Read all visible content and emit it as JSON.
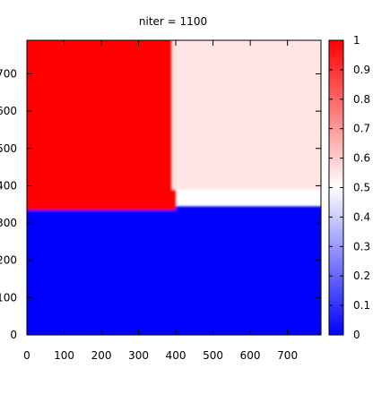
{
  "chart_data": {
    "type": "heatmap",
    "title": "niter = 1100",
    "xlabel": "",
    "ylabel": "",
    "xlim": [
      0,
      790
    ],
    "ylim": [
      0,
      790
    ],
    "x_ticks": [
      0,
      100,
      200,
      300,
      400,
      500,
      600,
      700
    ],
    "y_ticks": [
      0,
      100,
      200,
      300,
      400,
      500,
      600,
      700
    ],
    "x_tick_labels": [
      "0",
      "100",
      "200",
      "300",
      "400",
      "500",
      "600",
      "700"
    ],
    "y_tick_labels": [
      "0",
      "100",
      "200",
      "300",
      "400",
      "500",
      "600",
      "700"
    ],
    "colorbar": {
      "range": [
        0,
        1
      ],
      "ticks": [
        0,
        0.1,
        0.2,
        0.3,
        0.4,
        0.5,
        0.6,
        0.7,
        0.8,
        0.9,
        1
      ],
      "tick_labels": [
        "0",
        "0.1",
        "0.2",
        "0.3",
        "0.4",
        "0.5",
        "0.6",
        "0.7",
        "0.8",
        "0.9",
        "1"
      ],
      "colors": {
        "low": "#0000ff",
        "mid": "#ffffff",
        "high": "#ff0000"
      }
    },
    "regions": [
      {
        "x": [
          0,
          790
        ],
        "y": [
          0,
          340
        ],
        "value": 0.0
      },
      {
        "x": [
          0,
          395
        ],
        "y": [
          340,
          790
        ],
        "value": 1.0
      },
      {
        "x": [
          395,
          790
        ],
        "y": [
          395,
          790
        ],
        "value": 0.55
      }
    ],
    "grid": false
  }
}
